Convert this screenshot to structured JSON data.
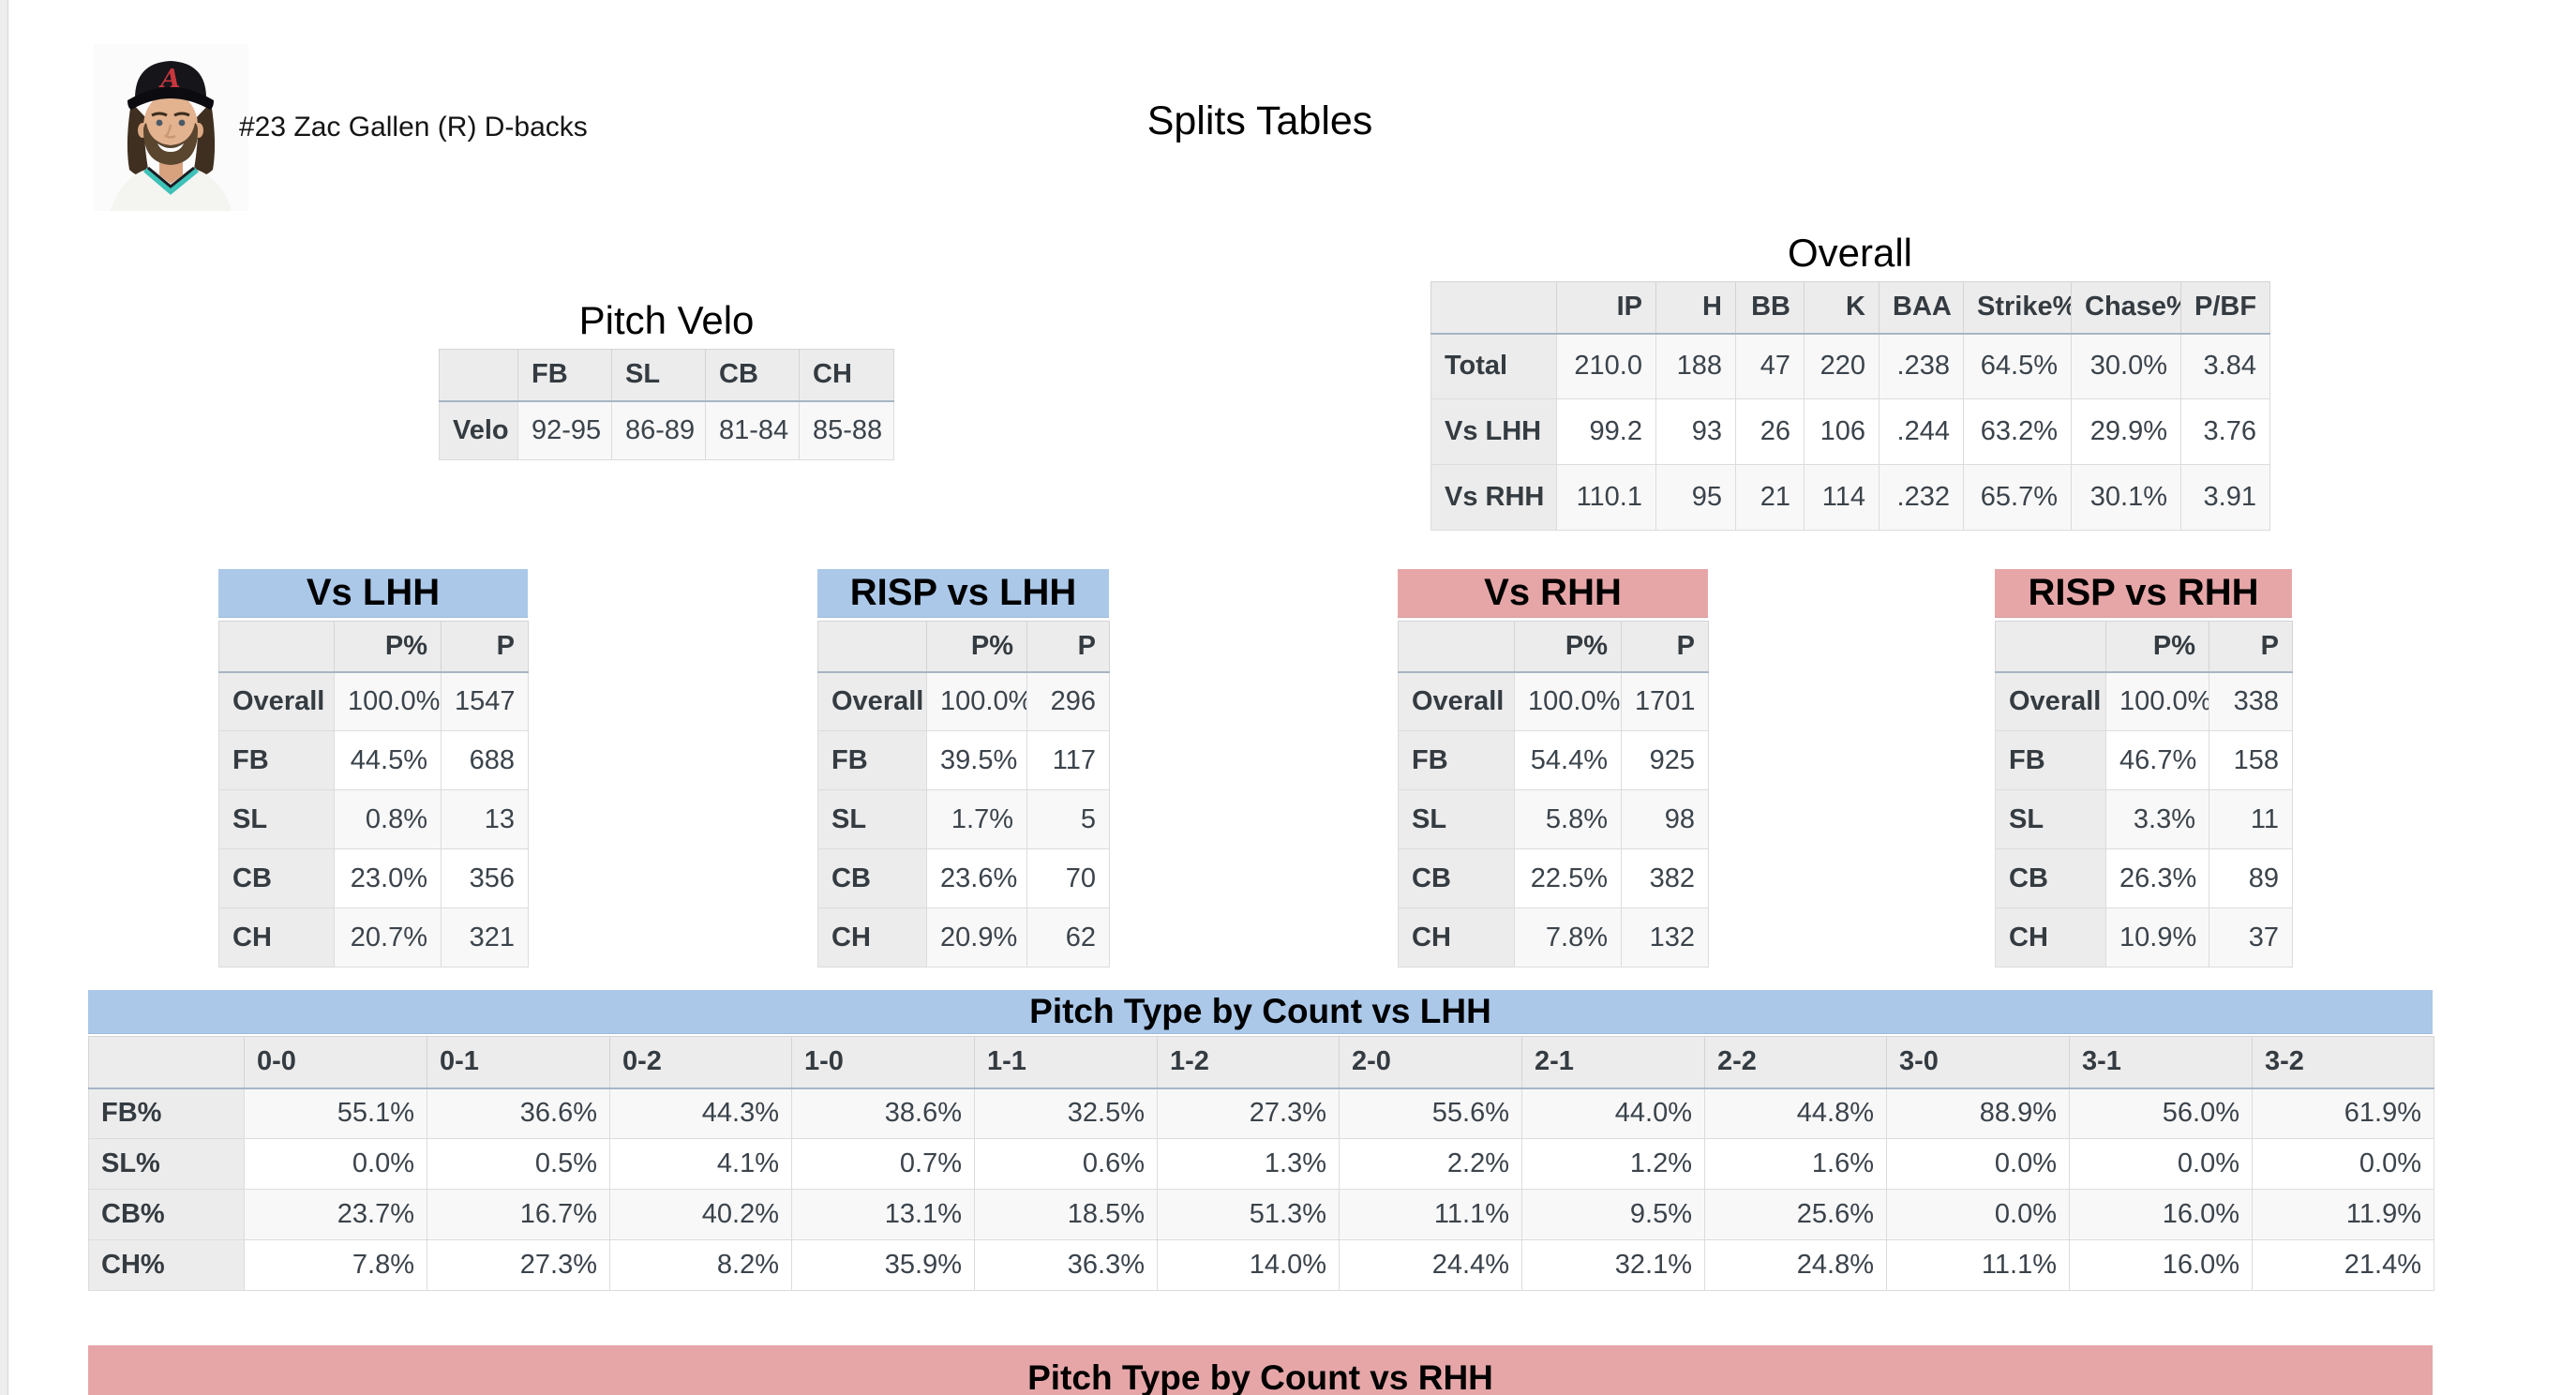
{
  "colors": {
    "band_blue": "#abc8e9",
    "band_pink": "#e6a6a8",
    "header_gray": "#ececec",
    "row_stripe": "#f8f8f8",
    "header_underline": "#a6b5c5",
    "dbacks_red": "#c8373e",
    "jersey_teal": "#3ec1b7"
  },
  "header": {
    "player_label": "#23 Zac Gallen (R) D-backs",
    "page_title": "Splits Tables",
    "avatar_icon": "player-headshot"
  },
  "pitch_velo": {
    "title": "Pitch Velo",
    "columns": [
      "FB",
      "SL",
      "CB",
      "CH"
    ],
    "rows": [
      {
        "label": "Velo",
        "values": [
          "92-95",
          "86-89",
          "81-84",
          "85-88"
        ]
      }
    ]
  },
  "overall": {
    "title": "Overall",
    "columns": [
      "IP",
      "H",
      "BB",
      "K",
      "BAA",
      "Strike%",
      "Chase%",
      "P/BF"
    ],
    "rows": [
      {
        "label": "Total",
        "values": [
          "210.0",
          "188",
          "47",
          "220",
          ".238",
          "64.5%",
          "30.0%",
          "3.84"
        ]
      },
      {
        "label": "Vs LHH",
        "values": [
          "99.2",
          "93",
          "26",
          "106",
          ".244",
          "63.2%",
          "29.9%",
          "3.76"
        ]
      },
      {
        "label": "Vs RHH",
        "values": [
          "110.1",
          "95",
          "21",
          "114",
          ".232",
          "65.7%",
          "30.1%",
          "3.91"
        ]
      }
    ]
  },
  "vs_lhh": {
    "title": "Vs LHH",
    "columns": [
      "P%",
      "P"
    ],
    "rows": [
      {
        "label": "Overall",
        "values": [
          "100.0%",
          "1547"
        ]
      },
      {
        "label": "FB",
        "values": [
          "44.5%",
          "688"
        ]
      },
      {
        "label": "SL",
        "values": [
          "0.8%",
          "13"
        ]
      },
      {
        "label": "CB",
        "values": [
          "23.0%",
          "356"
        ]
      },
      {
        "label": "CH",
        "values": [
          "20.7%",
          "321"
        ]
      }
    ]
  },
  "risp_vs_lhh": {
    "title": "RISP vs LHH",
    "columns": [
      "P%",
      "P"
    ],
    "rows": [
      {
        "label": "Overall",
        "values": [
          "100.0%",
          "296"
        ]
      },
      {
        "label": "FB",
        "values": [
          "39.5%",
          "117"
        ]
      },
      {
        "label": "SL",
        "values": [
          "1.7%",
          "5"
        ]
      },
      {
        "label": "CB",
        "values": [
          "23.6%",
          "70"
        ]
      },
      {
        "label": "CH",
        "values": [
          "20.9%",
          "62"
        ]
      }
    ]
  },
  "vs_rhh": {
    "title": "Vs RHH",
    "columns": [
      "P%",
      "P"
    ],
    "rows": [
      {
        "label": "Overall",
        "values": [
          "100.0%",
          "1701"
        ]
      },
      {
        "label": "FB",
        "values": [
          "54.4%",
          "925"
        ]
      },
      {
        "label": "SL",
        "values": [
          "5.8%",
          "98"
        ]
      },
      {
        "label": "CB",
        "values": [
          "22.5%",
          "382"
        ]
      },
      {
        "label": "CH",
        "values": [
          "7.8%",
          "132"
        ]
      }
    ]
  },
  "risp_vs_rhh": {
    "title": "RISP vs RHH",
    "columns": [
      "P%",
      "P"
    ],
    "rows": [
      {
        "label": "Overall",
        "values": [
          "100.0%",
          "338"
        ]
      },
      {
        "label": "FB",
        "values": [
          "46.7%",
          "158"
        ]
      },
      {
        "label": "SL",
        "values": [
          "3.3%",
          "11"
        ]
      },
      {
        "label": "CB",
        "values": [
          "26.3%",
          "89"
        ]
      },
      {
        "label": "CH",
        "values": [
          "10.9%",
          "37"
        ]
      }
    ]
  },
  "count_vs_lhh": {
    "title": "Pitch Type by Count vs LHH",
    "columns": [
      "0-0",
      "0-1",
      "0-2",
      "1-0",
      "1-1",
      "1-2",
      "2-0",
      "2-1",
      "2-2",
      "3-0",
      "3-1",
      "3-2"
    ],
    "rows": [
      {
        "label": "FB%",
        "values": [
          "55.1%",
          "36.6%",
          "44.3%",
          "38.6%",
          "32.5%",
          "27.3%",
          "55.6%",
          "44.0%",
          "44.8%",
          "88.9%",
          "56.0%",
          "61.9%"
        ]
      },
      {
        "label": "SL%",
        "values": [
          "0.0%",
          "0.5%",
          "4.1%",
          "0.7%",
          "0.6%",
          "1.3%",
          "2.2%",
          "1.2%",
          "1.6%",
          "0.0%",
          "0.0%",
          "0.0%"
        ]
      },
      {
        "label": "CB%",
        "values": [
          "23.7%",
          "16.7%",
          "40.2%",
          "13.1%",
          "18.5%",
          "51.3%",
          "11.1%",
          "9.5%",
          "25.6%",
          "0.0%",
          "16.0%",
          "11.9%"
        ]
      },
      {
        "label": "CH%",
        "values": [
          "7.8%",
          "27.3%",
          "8.2%",
          "35.9%",
          "36.3%",
          "14.0%",
          "24.4%",
          "32.1%",
          "24.8%",
          "11.1%",
          "16.0%",
          "21.4%"
        ]
      }
    ]
  },
  "count_vs_rhh": {
    "title": "Pitch Type by Count vs RHH"
  }
}
